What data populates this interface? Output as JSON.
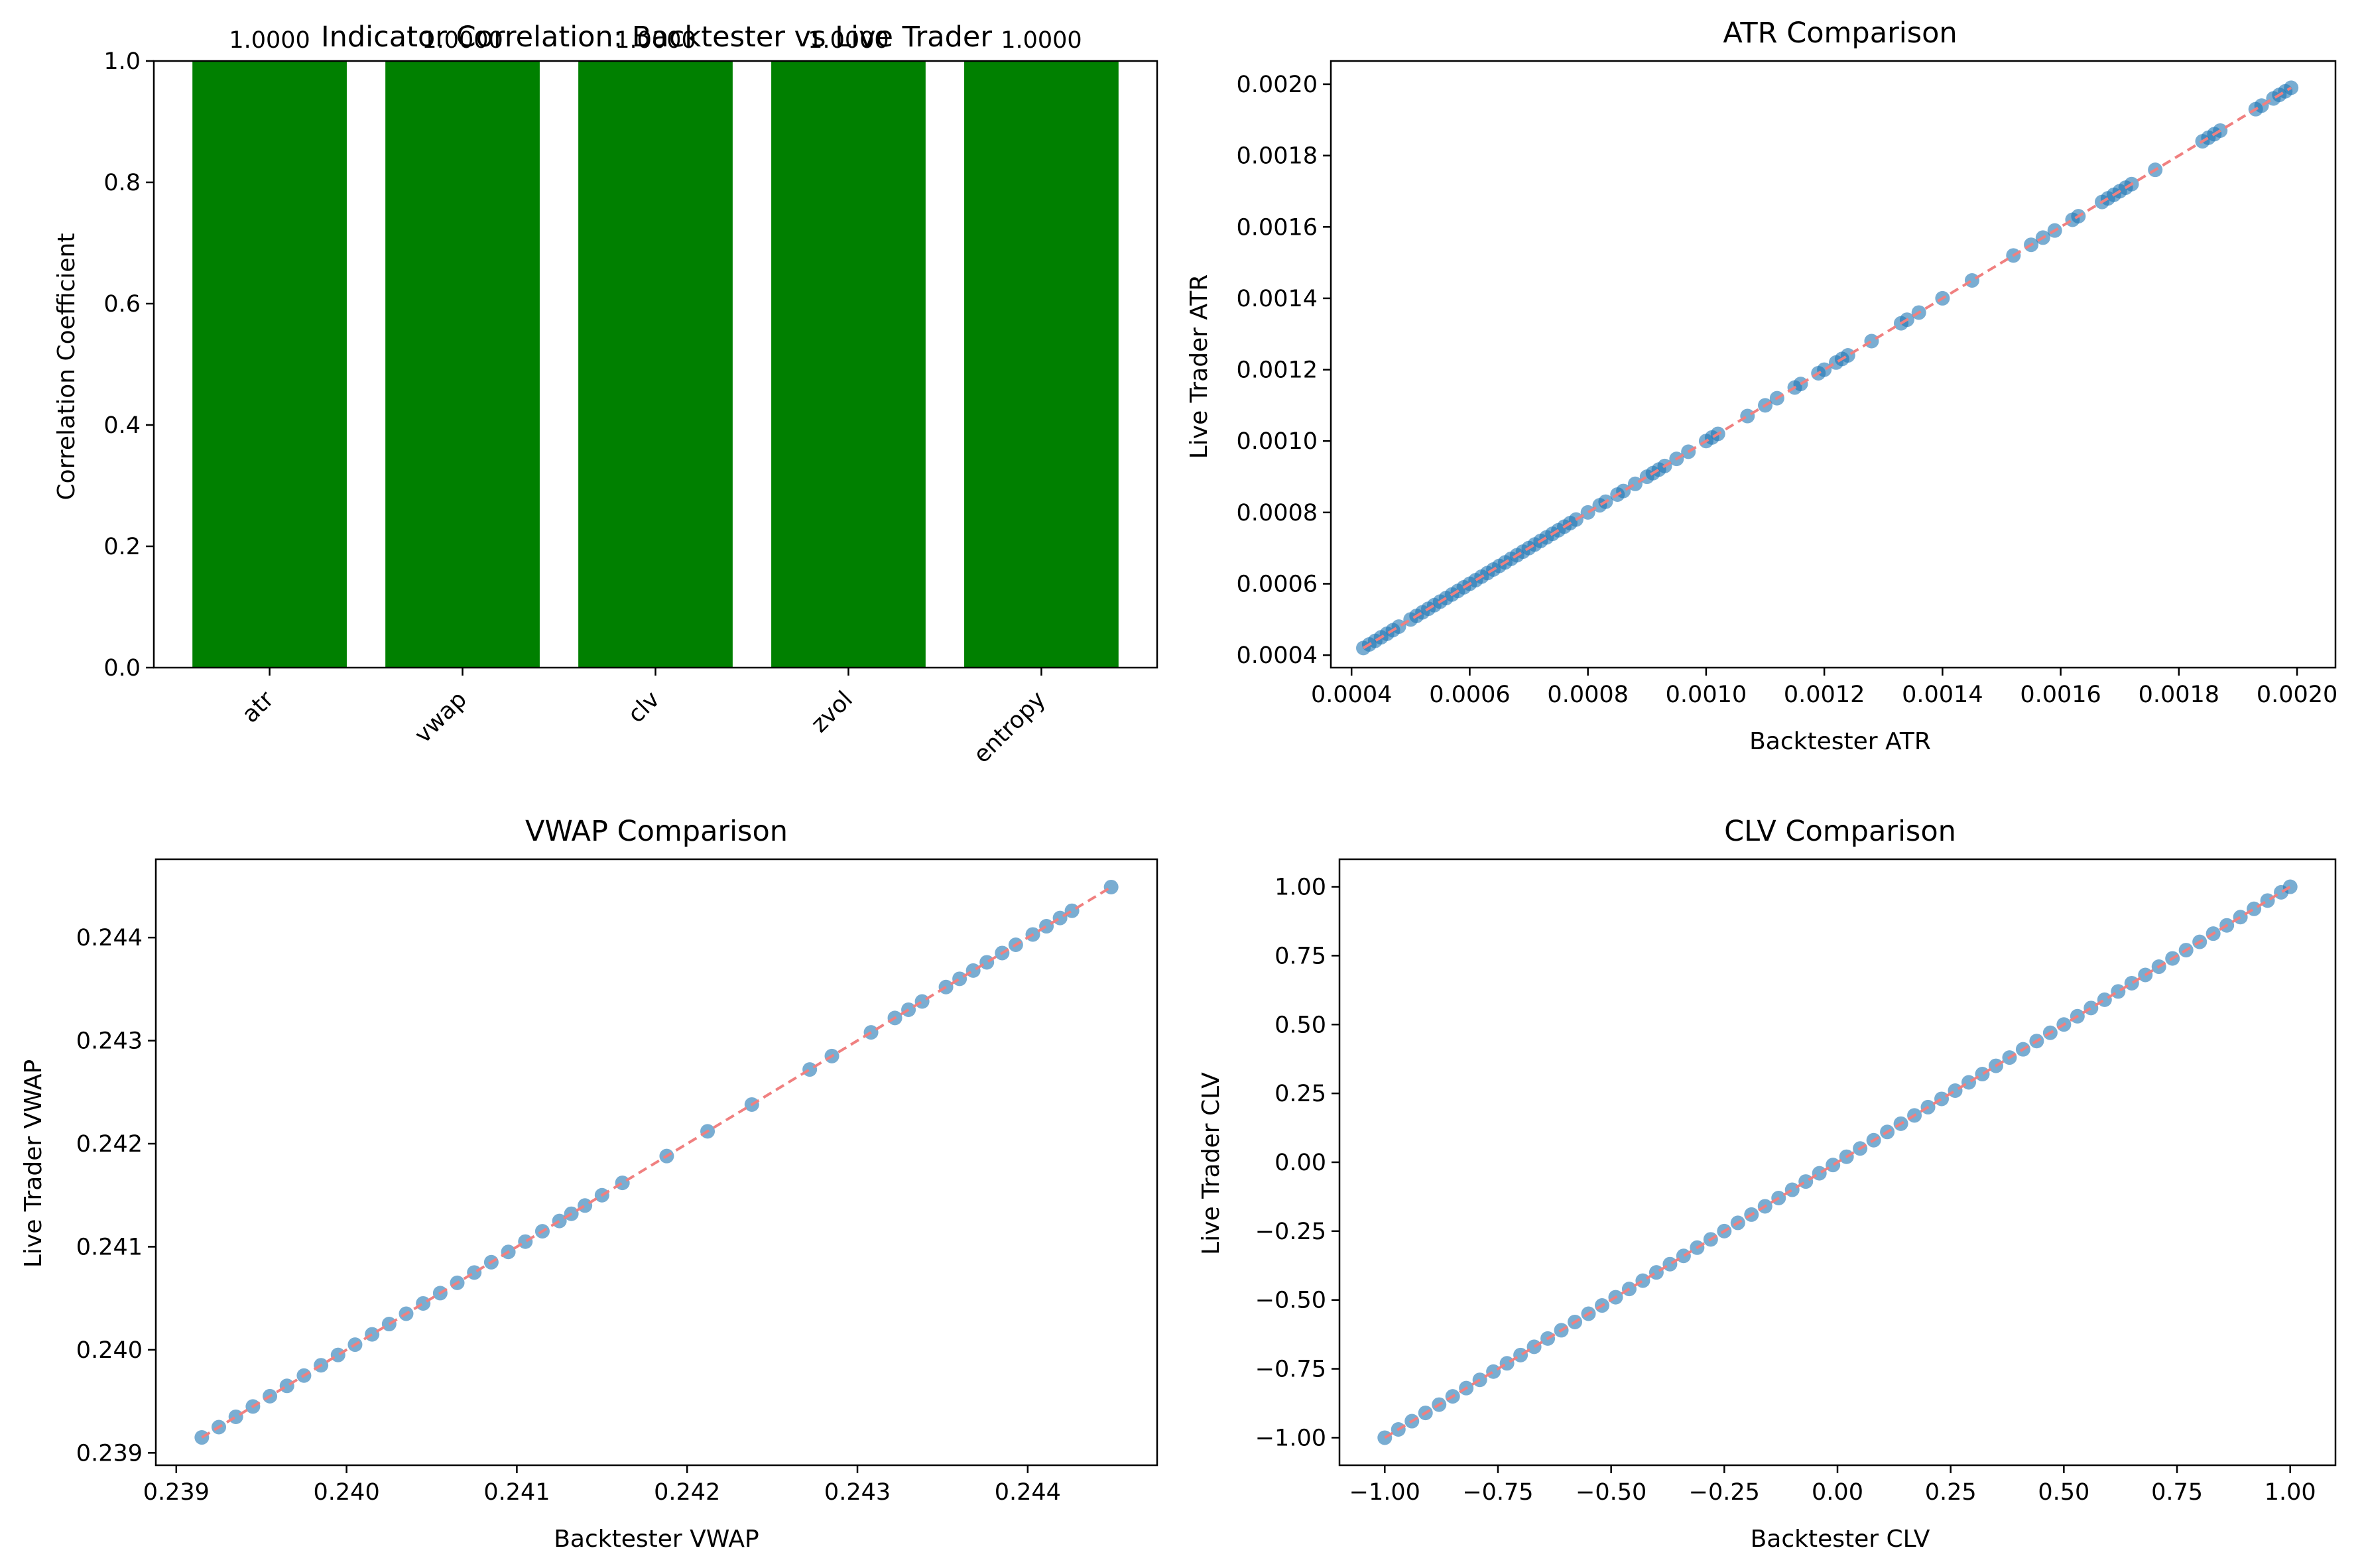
{
  "figure": {
    "colors": {
      "bar": "#008000",
      "scatter": "#1f77b4",
      "reference_line": "#f08080",
      "axes": "#000000",
      "background": "#ffffff"
    }
  },
  "chart_data": [
    {
      "id": "correlation",
      "type": "bar",
      "title": "Indicator Correlation: Backtester vs Live Trader",
      "xlabel": "",
      "ylabel": "Correlation Coefficient",
      "categories": [
        "atr",
        "vwap",
        "clv",
        "zvol",
        "entropy"
      ],
      "values": [
        1.0,
        1.0,
        1.0,
        1.0,
        1.0
      ],
      "value_labels": [
        "1.0000",
        "1.0000",
        "1.0000",
        "1.0000",
        "1.0000"
      ],
      "ylim": [
        0,
        1.0
      ],
      "yticks": [
        0.0,
        0.2,
        0.4,
        0.6,
        0.8,
        1.0
      ],
      "ytick_labels": [
        "0.0",
        "0.2",
        "0.4",
        "0.6",
        "0.8",
        "1.0"
      ],
      "xtick_rotation": 45,
      "grid": false,
      "color": "#008000"
    },
    {
      "id": "atr",
      "type": "scatter",
      "title": "ATR Comparison",
      "xlabel": "Backtester ATR",
      "ylabel": "Live Trader ATR",
      "xlim": [
        0.000365,
        0.002065
      ],
      "ylim": [
        0.000365,
        0.002065
      ],
      "xticks": [
        0.0004,
        0.0006,
        0.0008,
        0.001,
        0.0012,
        0.0014,
        0.0016,
        0.0018,
        0.002
      ],
      "xtick_labels": [
        "0.0004",
        "0.0006",
        "0.0008",
        "0.0010",
        "0.0012",
        "0.0014",
        "0.0016",
        "0.0018",
        "0.0020"
      ],
      "yticks": [
        0.0004,
        0.0006,
        0.0008,
        0.001,
        0.0012,
        0.0014,
        0.0016,
        0.0018,
        0.002
      ],
      "ytick_labels": [
        "0.0004",
        "0.0006",
        "0.0008",
        "0.0010",
        "0.0012",
        "0.0014",
        "0.0016",
        "0.0018",
        "0.0020"
      ],
      "x": [
        0.00042,
        0.00043,
        0.00044,
        0.00045,
        0.00046,
        0.00047,
        0.00048,
        0.0005,
        0.00051,
        0.00052,
        0.00053,
        0.00054,
        0.00055,
        0.00056,
        0.00057,
        0.00058,
        0.00059,
        0.0006,
        0.00061,
        0.00062,
        0.00063,
        0.00064,
        0.00065,
        0.00066,
        0.00067,
        0.00068,
        0.00069,
        0.0007,
        0.00071,
        0.00072,
        0.00073,
        0.00074,
        0.00075,
        0.00076,
        0.00077,
        0.00078,
        0.0008,
        0.00082,
        0.00083,
        0.00085,
        0.00086,
        0.00088,
        0.0009,
        0.00091,
        0.00092,
        0.00093,
        0.00095,
        0.00097,
        0.001,
        0.00101,
        0.00102,
        0.00107,
        0.0011,
        0.00112,
        0.00115,
        0.00116,
        0.00119,
        0.0012,
        0.00122,
        0.00123,
        0.00124,
        0.00128,
        0.00133,
        0.00134,
        0.00136,
        0.0014,
        0.00145,
        0.00152,
        0.00155,
        0.00157,
        0.00159,
        0.00162,
        0.00163,
        0.00167,
        0.00168,
        0.00169,
        0.0017,
        0.00171,
        0.00172,
        0.00176,
        0.00184,
        0.00185,
        0.00186,
        0.00187,
        0.00193,
        0.00194,
        0.00196,
        0.00197,
        0.00198,
        0.00199
      ],
      "y": [
        0.00042,
        0.00043,
        0.00044,
        0.00045,
        0.00046,
        0.00047,
        0.00048,
        0.0005,
        0.00051,
        0.00052,
        0.00053,
        0.00054,
        0.00055,
        0.00056,
        0.00057,
        0.00058,
        0.00059,
        0.0006,
        0.00061,
        0.00062,
        0.00063,
        0.00064,
        0.00065,
        0.00066,
        0.00067,
        0.00068,
        0.00069,
        0.0007,
        0.00071,
        0.00072,
        0.00073,
        0.00074,
        0.00075,
        0.00076,
        0.00077,
        0.00078,
        0.0008,
        0.00082,
        0.00083,
        0.00085,
        0.00086,
        0.00088,
        0.0009,
        0.00091,
        0.00092,
        0.00093,
        0.00095,
        0.00097,
        0.001,
        0.00101,
        0.00102,
        0.00107,
        0.0011,
        0.00112,
        0.00115,
        0.00116,
        0.00119,
        0.0012,
        0.00122,
        0.00123,
        0.00124,
        0.00128,
        0.00133,
        0.00134,
        0.00136,
        0.0014,
        0.00145,
        0.00152,
        0.00155,
        0.00157,
        0.00159,
        0.00162,
        0.00163,
        0.00167,
        0.00168,
        0.00169,
        0.0017,
        0.00171,
        0.00172,
        0.00176,
        0.00184,
        0.00185,
        0.00186,
        0.00187,
        0.00193,
        0.00194,
        0.00196,
        0.00197,
        0.00198,
        0.00199
      ],
      "reference_line": {
        "from": [
          0.00042,
          0.00042
        ],
        "to": [
          0.00199,
          0.00199
        ],
        "style": "dashed"
      },
      "grid": false
    },
    {
      "id": "vwap",
      "type": "scatter",
      "title": "VWAP Comparison",
      "xlabel": "Backtester VWAP",
      "ylabel": "Live Trader VWAP",
      "xlim": [
        0.23888,
        0.24476
      ],
      "ylim": [
        0.23888,
        0.24476
      ],
      "xticks": [
        0.239,
        0.24,
        0.241,
        0.242,
        0.243,
        0.244
      ],
      "xtick_labels": [
        "0.239",
        "0.240",
        "0.241",
        "0.242",
        "0.243",
        "0.244"
      ],
      "yticks": [
        0.239,
        0.24,
        0.241,
        0.242,
        0.243,
        0.244
      ],
      "ytick_labels": [
        "0.239",
        "0.240",
        "0.241",
        "0.242",
        "0.243",
        "0.244"
      ],
      "x": [
        0.23915,
        0.23925,
        0.23935,
        0.23945,
        0.23955,
        0.23965,
        0.23975,
        0.23985,
        0.23995,
        0.24005,
        0.24015,
        0.24025,
        0.24035,
        0.24045,
        0.24055,
        0.24065,
        0.24075,
        0.24085,
        0.24095,
        0.24105,
        0.24115,
        0.24125,
        0.24132,
        0.2414,
        0.2415,
        0.24162,
        0.24188,
        0.24212,
        0.24238,
        0.24272,
        0.24285,
        0.24308,
        0.24322,
        0.2433,
        0.24338,
        0.24352,
        0.2436,
        0.24368,
        0.24376,
        0.24385,
        0.24393,
        0.24403,
        0.24411,
        0.24419,
        0.24426,
        0.24449
      ],
      "y": [
        0.23915,
        0.23925,
        0.23935,
        0.23945,
        0.23955,
        0.23965,
        0.23975,
        0.23985,
        0.23995,
        0.24005,
        0.24015,
        0.24025,
        0.24035,
        0.24045,
        0.24055,
        0.24065,
        0.24075,
        0.24085,
        0.24095,
        0.24105,
        0.24115,
        0.24125,
        0.24132,
        0.2414,
        0.2415,
        0.24162,
        0.24188,
        0.24212,
        0.24238,
        0.24272,
        0.24285,
        0.24308,
        0.24322,
        0.2433,
        0.24338,
        0.24352,
        0.2436,
        0.24368,
        0.24376,
        0.24385,
        0.24393,
        0.24403,
        0.24411,
        0.24419,
        0.24426,
        0.24449
      ],
      "reference_line": {
        "from": [
          0.23915,
          0.23915
        ],
        "to": [
          0.24449,
          0.24449
        ],
        "style": "dashed"
      },
      "grid": false
    },
    {
      "id": "clv",
      "type": "scatter",
      "title": "CLV Comparison",
      "xlabel": "Backtester CLV",
      "ylabel": "Live Trader CLV",
      "xlim": [
        -1.1,
        1.1
      ],
      "ylim": [
        -1.1,
        1.1
      ],
      "xticks": [
        -1.0,
        -0.75,
        -0.5,
        -0.25,
        0.0,
        0.25,
        0.5,
        0.75,
        1.0
      ],
      "xtick_labels": [
        "−1.00",
        "−0.75",
        "−0.50",
        "−0.25",
        "0.00",
        "0.25",
        "0.50",
        "0.75",
        "1.00"
      ],
      "yticks": [
        -1.0,
        -0.75,
        -0.5,
        -0.25,
        0.0,
        0.25,
        0.5,
        0.75,
        1.0
      ],
      "ytick_labels": [
        "−1.00",
        "−0.75",
        "−0.50",
        "−0.25",
        "0.00",
        "0.25",
        "0.50",
        "0.75",
        "1.00"
      ],
      "x": [
        -1.0,
        -0.97,
        -0.94,
        -0.91,
        -0.88,
        -0.85,
        -0.82,
        -0.79,
        -0.76,
        -0.73,
        -0.7,
        -0.67,
        -0.64,
        -0.61,
        -0.58,
        -0.55,
        -0.52,
        -0.49,
        -0.46,
        -0.43,
        -0.4,
        -0.37,
        -0.34,
        -0.31,
        -0.28,
        -0.25,
        -0.22,
        -0.19,
        -0.16,
        -0.13,
        -0.1,
        -0.07,
        -0.04,
        -0.01,
        0.02,
        0.05,
        0.08,
        0.11,
        0.14,
        0.17,
        0.2,
        0.23,
        0.26,
        0.29,
        0.32,
        0.35,
        0.38,
        0.41,
        0.44,
        0.47,
        0.5,
        0.53,
        0.56,
        0.59,
        0.62,
        0.65,
        0.68,
        0.71,
        0.74,
        0.77,
        0.8,
        0.83,
        0.86,
        0.89,
        0.92,
        0.95,
        0.98,
        1.0
      ],
      "y": [
        -1.0,
        -0.97,
        -0.94,
        -0.91,
        -0.88,
        -0.85,
        -0.82,
        -0.79,
        -0.76,
        -0.73,
        -0.7,
        -0.67,
        -0.64,
        -0.61,
        -0.58,
        -0.55,
        -0.52,
        -0.49,
        -0.46,
        -0.43,
        -0.4,
        -0.37,
        -0.34,
        -0.31,
        -0.28,
        -0.25,
        -0.22,
        -0.19,
        -0.16,
        -0.13,
        -0.1,
        -0.07,
        -0.04,
        -0.01,
        0.02,
        0.05,
        0.08,
        0.11,
        0.14,
        0.17,
        0.2,
        0.23,
        0.26,
        0.29,
        0.32,
        0.35,
        0.38,
        0.41,
        0.44,
        0.47,
        0.5,
        0.53,
        0.56,
        0.59,
        0.62,
        0.65,
        0.68,
        0.71,
        0.74,
        0.77,
        0.8,
        0.83,
        0.86,
        0.89,
        0.92,
        0.95,
        0.98,
        1.0
      ],
      "reference_line": {
        "from": [
          -1.0,
          -1.0
        ],
        "to": [
          1.0,
          1.0
        ],
        "style": "dashed"
      },
      "grid": false
    }
  ]
}
